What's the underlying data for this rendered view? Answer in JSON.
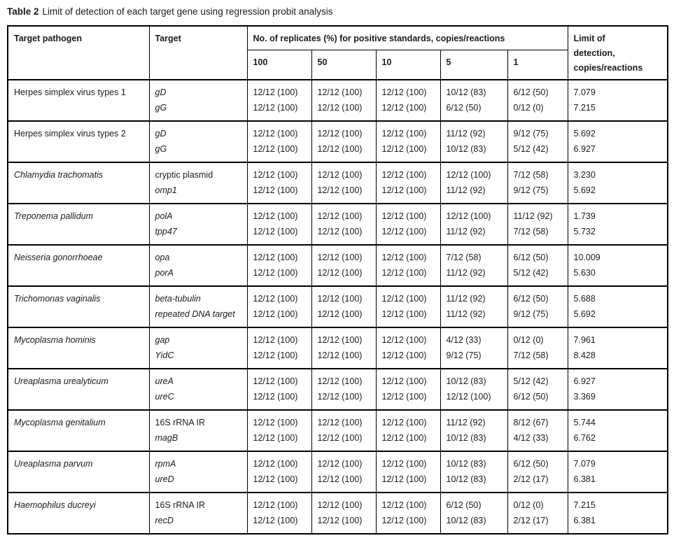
{
  "colors": {
    "background": "#ffffff",
    "text": "#1b1b1b",
    "border": "#000000"
  },
  "caption": {
    "label": "Table 2",
    "text": "Limit of detection of each target gene using regression probit analysis"
  },
  "table": {
    "headers": {
      "pathogen": "Target pathogen",
      "target": "Target",
      "replicates_group": "No. of replicates (%) for positive standards, copies/reactions",
      "concentrations": [
        "100",
        "50",
        "10",
        "5",
        "1"
      ],
      "lod": "Limit of\ndetection,\ncopies/reactions"
    },
    "rows": [
      {
        "pathogen": "Herpes simplex virus types 1",
        "pathogen_italic": false,
        "genes": [
          {
            "target": "gD",
            "italic": true,
            "replicates": [
              "12/12 (100)",
              "12/12 (100)",
              "12/12 (100)",
              "10/12 (83)",
              "6/12 (50)"
            ],
            "lod": "7.079"
          },
          {
            "target": "gG",
            "italic": true,
            "replicates": [
              "12/12 (100)",
              "12/12 (100)",
              "12/12 (100)",
              "6/12 (50)",
              "0/12 (0)"
            ],
            "lod": "7.215"
          }
        ]
      },
      {
        "pathogen": "Herpes simplex virus types 2",
        "pathogen_italic": false,
        "genes": [
          {
            "target": "gD",
            "italic": true,
            "replicates": [
              "12/12 (100)",
              "12/12 (100)",
              "12/12 (100)",
              "11/12 (92)",
              "9/12 (75)"
            ],
            "lod": "5.692"
          },
          {
            "target": "gG",
            "italic": true,
            "replicates": [
              "12/12 (100)",
              "12/12 (100)",
              "12/12 (100)",
              "10/12 (83)",
              "5/12 (42)"
            ],
            "lod": "6.927"
          }
        ]
      },
      {
        "pathogen": "Chlamydia trachomatis",
        "pathogen_italic": true,
        "genes": [
          {
            "target": "cryptic plasmid",
            "italic": false,
            "replicates": [
              "12/12 (100)",
              "12/12 (100)",
              "12/12 (100)",
              "12/12 (100)",
              "7/12 (58)"
            ],
            "lod": "3.230"
          },
          {
            "target": "omp1",
            "italic": true,
            "replicates": [
              "12/12 (100)",
              "12/12 (100)",
              "12/12 (100)",
              "11/12 (92)",
              "9/12 (75)"
            ],
            "lod": "5.692"
          }
        ]
      },
      {
        "pathogen": "Treponema pallidum",
        "pathogen_italic": true,
        "genes": [
          {
            "target": "polA",
            "italic": true,
            "replicates": [
              "12/12 (100)",
              "12/12 (100)",
              "12/12 (100)",
              "12/12 (100)",
              "11/12 (92)"
            ],
            "lod": "1.739"
          },
          {
            "target": "tpp47",
            "italic": true,
            "replicates": [
              "12/12 (100)",
              "12/12 (100)",
              "12/12 (100)",
              "11/12 (92)",
              "7/12 (58)"
            ],
            "lod": "5.732"
          }
        ]
      },
      {
        "pathogen": "Neisseria gonorrhoeae",
        "pathogen_italic": true,
        "genes": [
          {
            "target": "opa",
            "italic": true,
            "replicates": [
              "12/12 (100)",
              "12/12 (100)",
              "12/12 (100)",
              "7/12 (58)",
              "6/12 (50)"
            ],
            "lod": "10.009"
          },
          {
            "target": "porA",
            "italic": true,
            "replicates": [
              "12/12 (100)",
              "12/12 (100)",
              "12/12 (100)",
              "11/12 (92)",
              "5/12 (42)"
            ],
            "lod": "5.630"
          }
        ]
      },
      {
        "pathogen": "Trichomonas vaginalis",
        "pathogen_italic": true,
        "genes": [
          {
            "target": "beta-tubulin",
            "italic": true,
            "replicates": [
              "12/12 (100)",
              "12/12 (100)",
              "12/12 (100)",
              "11/12 (92)",
              "6/12 (50)"
            ],
            "lod": "5.688"
          },
          {
            "target": "repeated DNA target",
            "italic": true,
            "replicates": [
              "12/12 (100)",
              "12/12 (100)",
              "12/12 (100)",
              "11/12 (92)",
              "9/12 (75)"
            ],
            "lod": "5.692"
          }
        ]
      },
      {
        "pathogen": "Mycoplasma hominis",
        "pathogen_italic": true,
        "genes": [
          {
            "target": "gap",
            "italic": true,
            "replicates": [
              "12/12 (100)",
              "12/12 (100)",
              "12/12 (100)",
              "4/12 (33)",
              "0/12 (0)"
            ],
            "lod": "7.961"
          },
          {
            "target": "YidC",
            "italic": true,
            "replicates": [
              "12/12 (100)",
              "12/12 (100)",
              "12/12 (100)",
              "9/12 (75)",
              "7/12 (58)"
            ],
            "lod": "8.428"
          }
        ]
      },
      {
        "pathogen": "Ureaplasma urealyticum",
        "pathogen_italic": true,
        "genes": [
          {
            "target": "ureA",
            "italic": true,
            "replicates": [
              "12/12 (100)",
              "12/12 (100)",
              "12/12 (100)",
              "10/12 (83)",
              "5/12 (42)"
            ],
            "lod": "6.927"
          },
          {
            "target": "ureC",
            "italic": true,
            "replicates": [
              "12/12 (100)",
              "12/12 (100)",
              "12/12 (100)",
              "12/12 (100)",
              "6/12 (50)"
            ],
            "lod": "3.369"
          }
        ]
      },
      {
        "pathogen": "Mycoplasma genitalium",
        "pathogen_italic": true,
        "genes": [
          {
            "target": "16S rRNA IR",
            "italic": false,
            "replicates": [
              "12/12 (100)",
              "12/12 (100)",
              "12/12 (100)",
              "11/12 (92)",
              "8/12 (67)"
            ],
            "lod": "5.744"
          },
          {
            "target": "magB",
            "italic": true,
            "replicates": [
              "12/12 (100)",
              "12/12 (100)",
              "12/12 (100)",
              "10/12 (83)",
              "4/12 (33)"
            ],
            "lod": "6.762"
          }
        ]
      },
      {
        "pathogen": "Ureaplasma parvum",
        "pathogen_italic": true,
        "genes": [
          {
            "target": "rpmA",
            "italic": true,
            "replicates": [
              "12/12 (100)",
              "12/12 (100)",
              "12/12 (100)",
              "10/12 (83)",
              "6/12 (50)"
            ],
            "lod": "7.079"
          },
          {
            "target": "ureD",
            "italic": true,
            "replicates": [
              "12/12 (100)",
              "12/12 (100)",
              "12/12 (100)",
              "10/12 (83)",
              "2/12 (17)"
            ],
            "lod": "6.381"
          }
        ]
      },
      {
        "pathogen": "Haemophilus ducreyi",
        "pathogen_italic": true,
        "genes": [
          {
            "target": "16S rRNA IR",
            "italic": false,
            "replicates": [
              "12/12 (100)",
              "12/12 (100)",
              "12/12 (100)",
              "6/12 (50)",
              "0/12 (0)"
            ],
            "lod": "7.215"
          },
          {
            "target": "recD",
            "italic": true,
            "replicates": [
              "12/12 (100)",
              "12/12 (100)",
              "12/12 (100)",
              "10/12 (83)",
              "2/12 (17)"
            ],
            "lod": "6.381"
          }
        ]
      }
    ]
  }
}
